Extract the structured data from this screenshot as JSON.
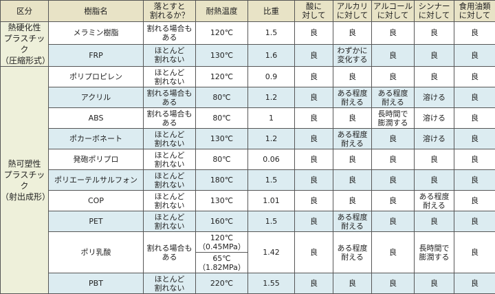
{
  "headers": [
    "区分",
    "樹脂名",
    "落とすと\n割れるか？",
    "耐熱温度",
    "比重",
    "酸に\n対して",
    "アルカリ\nに対して",
    "アルコール\nに対して",
    "シンナー\nに対して",
    "食用油類\nに対して"
  ],
  "categories": [
    {
      "label": "熱硬化性\nプラスチック\n（圧縮形式）",
      "rows": 2
    },
    {
      "label": "熱可塑性\nプラスチック\n（射出成形）",
      "rows": 10
    }
  ],
  "rows": [
    {
      "name": "メラミン樹脂",
      "drop": "割れる場合も\nある",
      "temp": "120℃",
      "gravity": "1.5",
      "acid": "良",
      "alkali": "良",
      "alcohol": "良",
      "thinner": "良",
      "oil": "良"
    },
    {
      "name": "FRP",
      "drop": "ほとんど\n割れない",
      "temp": "130℃",
      "gravity": "1.6",
      "acid": "良",
      "alkali": "わずかに\n変化する",
      "alcohol": "良",
      "thinner": "良",
      "oil": "良"
    },
    {
      "name": "ポリプロピレン",
      "drop": "ほとんど\n割れない",
      "temp": "120℃",
      "gravity": "0.9",
      "acid": "良",
      "alkali": "良",
      "alcohol": "良",
      "thinner": "良",
      "oil": "良"
    },
    {
      "name": "アクリル",
      "drop": "割れる場合も\nある",
      "temp": "80℃",
      "gravity": "1.2",
      "acid": "良",
      "alkali": "ある程度\n耐える",
      "alcohol": "ある程度\n耐える",
      "thinner": "溶ける",
      "oil": "良"
    },
    {
      "name": "ABS",
      "drop": "割れる場合も\nある",
      "temp": "80℃",
      "gravity": "1",
      "acid": "良",
      "alkali": "良",
      "alcohol": "長時間で\n膨潤する",
      "thinner": "溶ける",
      "oil": "良"
    },
    {
      "name": "ポカーボネート",
      "drop": "ほとんど\n割れない",
      "temp": "130℃",
      "gravity": "1.2",
      "acid": "良",
      "alkali": "ある程度\n耐える",
      "alcohol": "良",
      "thinner": "溶ける",
      "oil": "良"
    },
    {
      "name": "発砲ポリプロ",
      "drop": "ほとんど\n割れない",
      "temp": "80℃",
      "gravity": "0.06",
      "acid": "良",
      "alkali": "良",
      "alcohol": "良",
      "thinner": "良",
      "oil": "良"
    },
    {
      "name": "ポリエーテルサルフォン",
      "drop": "ほとんど\n割れない",
      "temp": "180℃",
      "gravity": "1.5",
      "acid": "良",
      "alkali": "良",
      "alcohol": "良",
      "thinner": "良",
      "oil": "良"
    },
    {
      "name": "COP",
      "drop": "ほとんど\n割れない",
      "temp": "130℃",
      "gravity": "1.01",
      "acid": "良",
      "alkali": "良",
      "alcohol": "良",
      "thinner": "ある程度\n耐える",
      "oil": "良"
    },
    {
      "name": "PET",
      "drop": "ほとんど\n割れない",
      "temp": "160℃",
      "gravity": "1.5",
      "acid": "良",
      "alkali": "ある程度\n耐える",
      "alcohol": "良",
      "thinner": "良",
      "oil": "良"
    },
    {
      "name": "ポリ乳酸",
      "drop": "割れる場合も\nある",
      "temp": "120℃\n（0.45MPa）",
      "temp2": "65℃\n（1.82MPa）",
      "gravity": "1.42",
      "acid": "良",
      "alkali": "ある程度\n耐える",
      "alcohol": "良",
      "thinner": "長時間で\n膨潤する",
      "oil": "良"
    },
    {
      "name": "PBT",
      "drop": "ほとんど\n割れない",
      "temp": "220℃",
      "gravity": "1.55",
      "acid": "良",
      "alkali": "良",
      "alcohol": "良",
      "thinner": "良",
      "oil": "良"
    }
  ],
  "colors": {
    "header": "#e8e3c6",
    "category": "#eef0da",
    "stripe": "#dcecf1",
    "border": "#555555"
  }
}
